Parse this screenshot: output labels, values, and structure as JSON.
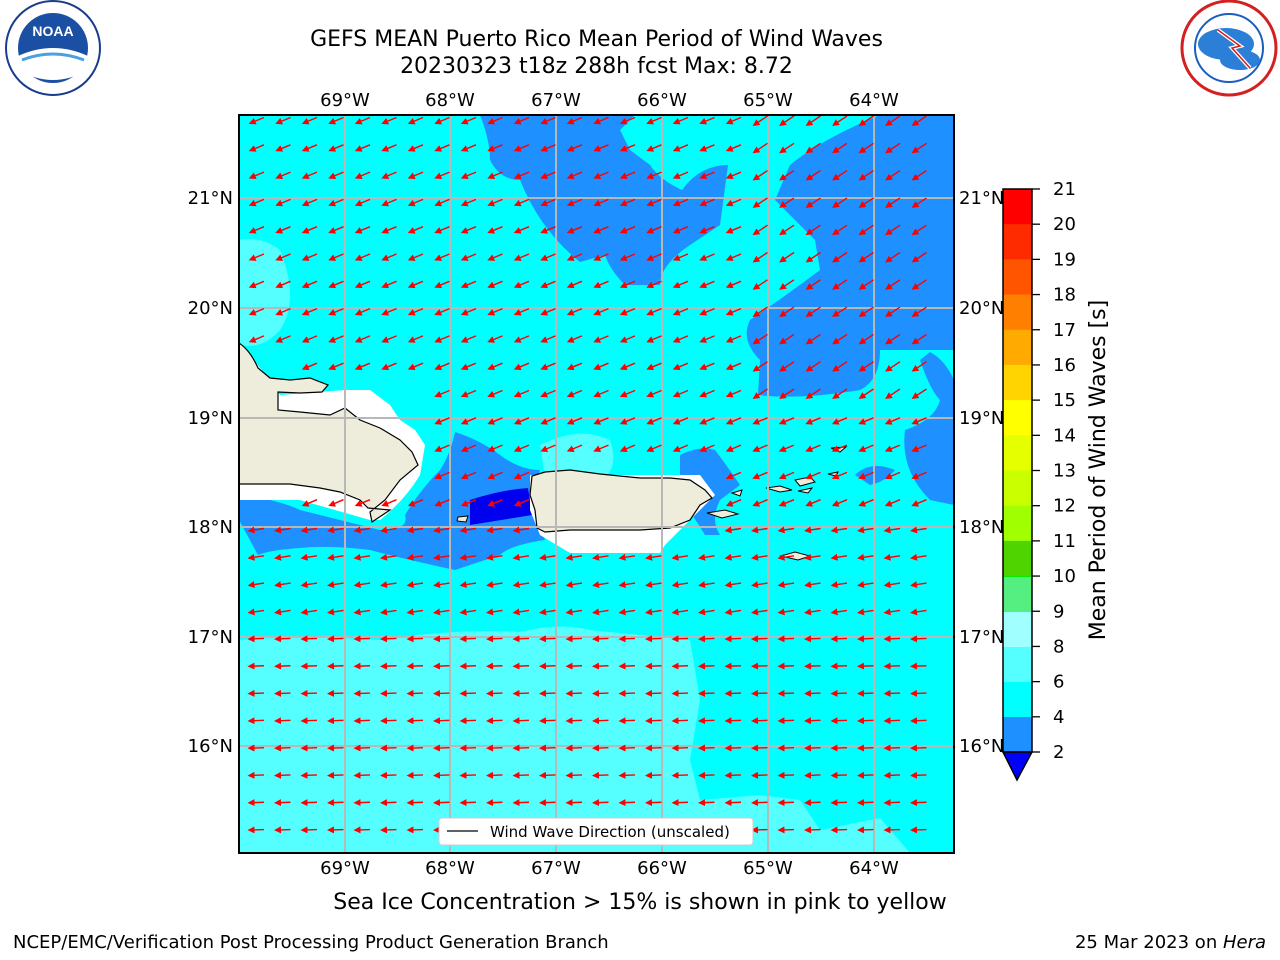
{
  "title": {
    "line1": "GEFS MEAN Puerto Rico Mean Period of Wind Waves",
    "line2": "20230323 t18z 288h fcst   Max: 8.72"
  },
  "logos": {
    "noaa_text": "NOAA",
    "noaa_ring": "NATIONAL OCEANIC AND ATMOSPHERIC ADMINISTRATION · U.S. DEPARTMENT OF COMMERCE",
    "nws_ring": "NATIONAL WEATHER SERVICE",
    "noaa_icon": "noaa-logo",
    "nws_icon": "nws-logo"
  },
  "map": {
    "lon_labels": [
      "69°W",
      "68°W",
      "67°W",
      "66°W",
      "65°W",
      "64°W"
    ],
    "lat_labels": [
      "21°N",
      "20°N",
      "19°N",
      "18°N",
      "17°N",
      "16°N"
    ],
    "legend_label": "Wind Wave Direction (unscaled)",
    "arrow_color": "#ff0000",
    "land_color": "#eeeddc",
    "grid_color": "#b8b8b8"
  },
  "colorbar": {
    "label": "Mean Period of Wind Waves [s]",
    "ticks": [
      "21",
      "20",
      "19",
      "18",
      "17",
      "16",
      "15",
      "14",
      "13",
      "12",
      "11",
      "10",
      "9",
      "8",
      "6",
      "4",
      "2"
    ],
    "colors": [
      "#ff0000",
      "#fe2b00",
      "#ff5500",
      "#ff8000",
      "#ffaa00",
      "#ffd400",
      "#ffff00",
      "#e6ff00",
      "#caff00",
      "#a0ff00",
      "#50d400",
      "#00ee00",
      "#00ff00",
      "#55ff80",
      "#a0ffff",
      "#55ffff",
      "#00ffff",
      "#1e90ff",
      "#0000ff"
    ]
  },
  "note": "Sea Ice Concentration > 15% is shown in pink to yellow",
  "footer": {
    "left": "NCEP/EMC/Verification Post Processing Product Generation Branch",
    "right_prefix": "25 Mar 2023 on ",
    "right_host": "Hera"
  }
}
